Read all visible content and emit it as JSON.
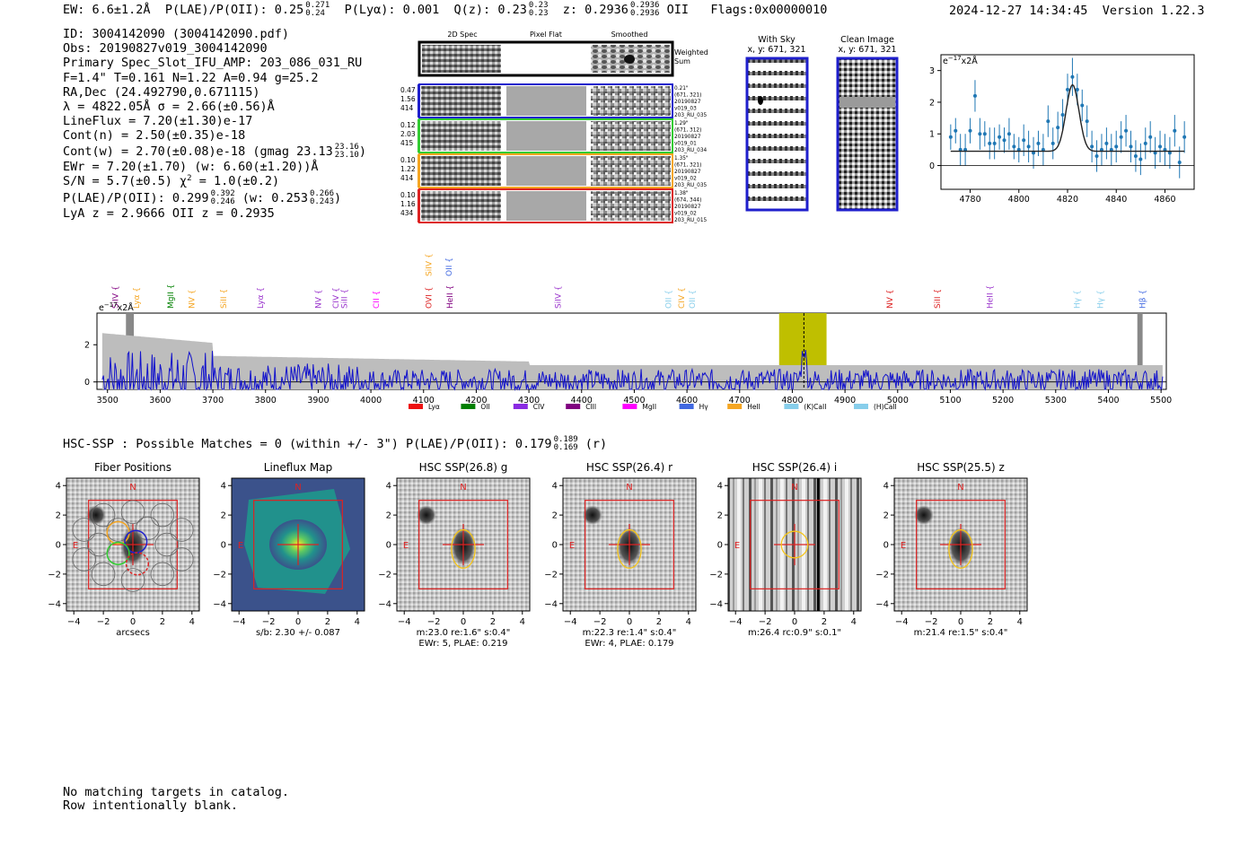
{
  "header": {
    "ew": "EW: 6.6±1.2Å",
    "plae_label": "P(LAE)/P(OII): 0.25",
    "plae_hi": "0.271",
    "plae_lo": "0.24",
    "plya": "P(Lyα): 0.001",
    "qz_label": "Q(z): 0.23",
    "qz_hi": "0.23",
    "qz_lo": "0.23",
    "z_label": "z: 0.2936",
    "z_hi": "0.2936",
    "z_lo": "0.2936",
    "z_line": "OII",
    "flags": "Flags:0x00000010",
    "timestamp": "2024-12-27 14:34:45",
    "version": "Version 1.22.3"
  },
  "info": {
    "id": "ID: 3004142090 (3004142090.pdf)",
    "obs": "Obs: 20190827v019_3004142090",
    "primary": "Primary Spec_Slot_IFU_AMP: 203_086_031_RU",
    "params": "F=1.4\"  T=0.161  N=1.22  A=0.94  g=25.2",
    "radec": "RA,Dec (24.492790,0.671115)",
    "lambda": "λ = 4822.05Å  σ = 2.66(±0.56)Å",
    "lineflux": "LineFlux = 7.20(±1.30)e-17",
    "contn": "Cont(n) = 2.50(±0.35)e-18",
    "contw_label": "Cont(w) = 2.70(±0.08)e-18 (gmag 23.13",
    "contw_hi": "23.16",
    "contw_lo": "23.10",
    "contw_close": ")",
    "ewr": "EWr = 7.20(±1.70) (w: 6.60(±1.20))Å",
    "sn": "S/N = 5.7(±0.5)  χ",
    "sn_sup": "2",
    "sn_rest": " = 1.0(±0.2)",
    "plae_label": "P(LAE)/P(OII): 0.299",
    "plae_hi": "0.392",
    "plae_lo": "0.246",
    "plae_w": "(w: 0.253",
    "plae_w_hi": "0.266",
    "plae_w_lo": "0.243",
    "plae_close": ")",
    "lyaz": "LyA z = 2.9666  OII z = 0.2935"
  },
  "cutouts": {
    "col_headers": [
      "2D Spec",
      "Pixel Flat",
      "Smoothed"
    ],
    "weighted_sum": [
      "Weighted",
      "Sum"
    ],
    "rows": [
      {
        "left": [
          "0.47",
          "1.56",
          "414"
        ],
        "right": [
          "0.21\"",
          "(671, 321)",
          "20190827",
          "v019_03",
          "203_RU_035"
        ],
        "color": "#1f1fcc",
        "bar": "#1f1fcc"
      },
      {
        "left": [
          "0.12",
          "2.03",
          "415"
        ],
        "right": [
          "1.29\"",
          "(671, 312)",
          "20190827",
          "v019_01",
          "203_RU_034"
        ],
        "color": "#33cc33",
        "bar": "#33cc33"
      },
      {
        "left": [
          "0.10",
          "1.22",
          "414"
        ],
        "right": [
          "1.35\"",
          "(671, 321)",
          "20190827",
          "v019_02",
          "203_RU_035"
        ],
        "color": "#f5a623",
        "bar": "#f5a623"
      },
      {
        "left": [
          "0.10",
          "1.16",
          "434"
        ],
        "right": [
          "1.38\"",
          "(674, 344)",
          "20190827",
          "v019_02",
          "203_RU_015"
        ],
        "color": "#dd2222",
        "bar": "#dd2222"
      }
    ]
  },
  "sky_panels": {
    "with_sky_title": "With Sky",
    "with_sky_coords": "x, y: 671, 321",
    "clean_title": "Clean Image",
    "clean_coords": "x, y: 671, 321"
  },
  "zoom_chart": {
    "chart_data": {
      "type": "scatter",
      "ylabel": "e$^{-17}$x2Å",
      "xlim": [
        4768,
        4872
      ],
      "ylim": [
        -0.75,
        3.5
      ],
      "xticks": [
        4780,
        4800,
        4820,
        4840,
        4860
      ],
      "yticks": [
        0,
        1,
        2,
        3
      ],
      "x": [
        4772,
        4774,
        4776,
        4778,
        4780,
        4782,
        4784,
        4786,
        4788,
        4790,
        4792,
        4794,
        4796,
        4798,
        4800,
        4802,
        4804,
        4806,
        4808,
        4810,
        4812,
        4814,
        4816,
        4818,
        4820,
        4822,
        4824,
        4826,
        4828,
        4830,
        4832,
        4834,
        4836,
        4838,
        4840,
        4842,
        4844,
        4846,
        4848,
        4850,
        4852,
        4854,
        4856,
        4858,
        4860,
        4862,
        4864,
        4866,
        4868
      ],
      "y": [
        0.9,
        1.1,
        0.5,
        0.5,
        1.1,
        2.2,
        1.0,
        1.0,
        0.7,
        0.7,
        0.9,
        0.8,
        1.0,
        0.6,
        0.5,
        0.8,
        0.6,
        0.4,
        0.7,
        0.5,
        1.4,
        0.7,
        1.2,
        1.6,
        2.4,
        2.8,
        2.4,
        1.9,
        1.4,
        0.6,
        0.3,
        0.5,
        0.7,
        0.5,
        0.6,
        0.9,
        1.1,
        0.6,
        0.3,
        0.2,
        0.7,
        0.9,
        0.4,
        0.6,
        0.5,
        0.4,
        1.1,
        0.1,
        0.9
      ],
      "err": [
        0.4,
        0.4,
        0.5,
        0.5,
        0.4,
        0.5,
        0.5,
        0.4,
        0.5,
        0.5,
        0.4,
        0.4,
        0.5,
        0.4,
        0.4,
        0.5,
        0.5,
        0.5,
        0.4,
        0.5,
        0.5,
        0.5,
        0.5,
        0.5,
        0.5,
        0.6,
        0.5,
        0.5,
        0.5,
        0.5,
        0.5,
        0.5,
        0.5,
        0.5,
        0.5,
        0.5,
        0.5,
        0.5,
        0.5,
        0.5,
        0.5,
        0.5,
        0.5,
        0.5,
        0.5,
        0.5,
        0.5,
        0.5,
        0.5
      ],
      "fit": {
        "center": 4822.05,
        "sigma": 2.66,
        "amplitude": 2.1,
        "continuum": 0.45
      }
    }
  },
  "spectrum": {
    "chart_data": {
      "type": "line",
      "ylabel": "e$^{-17}$x2Å",
      "xlim": [
        3480,
        5510
      ],
      "ylim": [
        -0.4,
        3.7
      ],
      "xticks": [
        3500,
        3600,
        3700,
        3800,
        3900,
        4000,
        4100,
        4200,
        4300,
        4400,
        4500,
        4600,
        4700,
        4800,
        4900,
        5000,
        5100,
        5200,
        5300,
        5400,
        5500
      ],
      "yticks": [
        0,
        2
      ],
      "highlight_band": [
        4775,
        4865
      ],
      "line_marker": 4822,
      "grey_bands": [
        [
          3535,
          3550
        ],
        [
          5455,
          5465
        ]
      ],
      "line_labels": [
        {
          "name": "SiIV",
          "wave": 3515,
          "color": "#800080"
        },
        {
          "name": "Lyα",
          "wave": 3555,
          "color": "#f5a623"
        },
        {
          "name": "MgII",
          "wave": 3620,
          "color": "#008000"
        },
        {
          "name": "NV",
          "wave": 3660,
          "color": "#f5a623"
        },
        {
          "name": "SiII",
          "wave": 3720,
          "color": "#f5a623"
        },
        {
          "name": "Lyα",
          "wave": 3790,
          "color": "#9932cc"
        },
        {
          "name": "NV",
          "wave": 3900,
          "color": "#9932cc"
        },
        {
          "name": "CIV",
          "wave": 3933,
          "color": "#9932cc"
        },
        {
          "name": "SiII",
          "wave": 3950,
          "color": "#9932cc"
        },
        {
          "name": "CII",
          "wave": 4010,
          "color": "#ff00ff"
        },
        {
          "name": "OVI",
          "wave": 4110,
          "color": "#dd2222"
        },
        {
          "name": "HeII",
          "wave": 4150,
          "color": "#800080"
        },
        {
          "name": "SiIV",
          "wave": 4355,
          "color": "#9932cc"
        },
        {
          "name": "OII",
          "wave": 4565,
          "color": "#87ceeb"
        },
        {
          "name": "CIV",
          "wave": 4590,
          "color": "#f5a623"
        },
        {
          "name": "OII",
          "wave": 4610,
          "color": "#87ceeb"
        },
        {
          "name": "NV",
          "wave": 4985,
          "color": "#dd2222"
        },
        {
          "name": "SiII",
          "wave": 5075,
          "color": "#dd2222"
        },
        {
          "name": "HeII",
          "wave": 5175,
          "color": "#9932cc"
        },
        {
          "name": "Hγ",
          "wave": 5340,
          "color": "#87ceeb"
        },
        {
          "name": "Hγ",
          "wave": 5385,
          "color": "#87ceeb"
        },
        {
          "name": "Hβ",
          "wave": 5465,
          "color": "#4169e1"
        }
      ],
      "top_labels": [
        {
          "name": "SiIV",
          "wave": 4110,
          "color": "#f5a623"
        },
        {
          "name": "OII",
          "wave": 4148,
          "color": "#4169e1"
        }
      ],
      "legend": [
        {
          "name": "Lyα",
          "color": "#ee1111"
        },
        {
          "name": "OII",
          "color": "#008000"
        },
        {
          "name": "CIV",
          "color": "#8a2be2"
        },
        {
          "name": "CIII",
          "color": "#800080"
        },
        {
          "name": "MgII",
          "color": "#ff00ff"
        },
        {
          "name": "Hγ",
          "color": "#4169e1"
        },
        {
          "name": "HeII",
          "color": "#f5a623"
        },
        {
          "name": "(K)CaII",
          "color": "#87ceeb"
        },
        {
          "name": "(H)CaII",
          "color": "#87ceeb"
        }
      ]
    }
  },
  "hsc": {
    "title_label": "HSC-SSP : Possible Matches = 0 (within +/- 3\")  P(LAE)/P(OII): 0.179",
    "title_hi": "0.189",
    "title_lo": "0.169",
    "title_band": "(r)",
    "panels": [
      {
        "title": "Fiber Positions",
        "caption1": "arcsecs",
        "caption2": ""
      },
      {
        "title": "Lineflux Map",
        "caption1": "s/b: 2.30 +/- 0.087",
        "caption2": ""
      },
      {
        "title": "HSC SSP(26.8) g",
        "caption1": "m:23.0  re:1.6\"  s:0.4\"",
        "caption2": "EWr: 5, PLAE: 0.219"
      },
      {
        "title": "HSC SSP(26.4) r",
        "caption1": "m:22.3  re:1.4\"  s:0.4\"",
        "caption2": "EWr: 4, PLAE: 0.179"
      },
      {
        "title": "HSC SSP(26.4) i",
        "caption1": "m:26.4 rc:0.9\"  s:0.1\"",
        "caption2": ""
      },
      {
        "title": "HSC SSP(25.5) z",
        "caption1": "m:21.4  re:1.5\"  s:0.4\"",
        "caption2": ""
      }
    ],
    "ticks": [
      -4,
      -2,
      0,
      2,
      4
    ],
    "north": "N",
    "east": "E"
  },
  "footer": {
    "line1": "No matching targets in catalog.",
    "line2": "Row intentionally blank."
  }
}
